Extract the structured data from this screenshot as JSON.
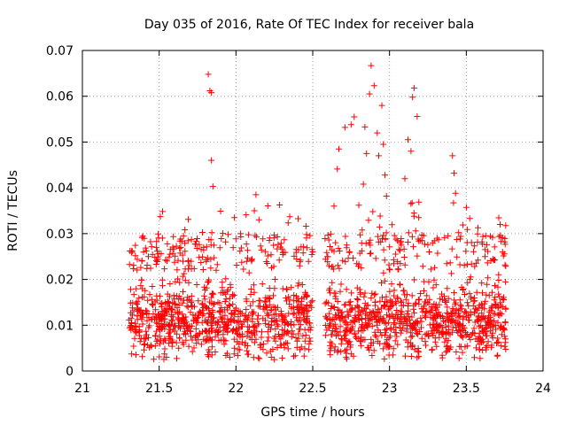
{
  "chart_data": {
    "type": "scatter",
    "title": "Day 035 of 2016, Rate Of TEC Index for receiver bala",
    "xlabel": "GPS time / hours",
    "ylabel": "ROTI / TECUs",
    "xlim": [
      21,
      24
    ],
    "ylim": [
      0,
      0.07
    ],
    "x_ticks": [
      "21",
      "21.5",
      "22",
      "22.5",
      "23",
      "23.5",
      "24"
    ],
    "y_ticks": [
      "0",
      "0.01",
      "0.02",
      "0.03",
      "0.04",
      "0.05",
      "0.06",
      "0.07"
    ],
    "grid": true,
    "marker": "plus",
    "color": "#ff0000",
    "clusters": [
      {
        "x_range": [
          21.3,
          22.5
        ],
        "dense_y": [
          0.004,
          0.022
        ],
        "n": 950
      },
      {
        "x_range": [
          22.58,
          23.76
        ],
        "dense_y": [
          0.004,
          0.022
        ],
        "n": 950
      }
    ],
    "notable_points": [
      {
        "x": 21.82,
        "y": 0.0648
      },
      {
        "x": 21.83,
        "y": 0.0612
      },
      {
        "x": 21.84,
        "y": 0.0608
      },
      {
        "x": 21.84,
        "y": 0.046
      },
      {
        "x": 21.85,
        "y": 0.0403
      },
      {
        "x": 22.13,
        "y": 0.0385
      },
      {
        "x": 22.12,
        "y": 0.035
      },
      {
        "x": 22.15,
        "y": 0.033
      },
      {
        "x": 22.35,
        "y": 0.0337
      },
      {
        "x": 21.99,
        "y": 0.0335
      },
      {
        "x": 22.88,
        "y": 0.0667
      },
      {
        "x": 22.9,
        "y": 0.0623
      },
      {
        "x": 22.87,
        "y": 0.0605
      },
      {
        "x": 22.95,
        "y": 0.058
      },
      {
        "x": 22.92,
        "y": 0.052
      },
      {
        "x": 22.96,
        "y": 0.0495
      },
      {
        "x": 22.93,
        "y": 0.047
      },
      {
        "x": 23.16,
        "y": 0.0618
      },
      {
        "x": 23.15,
        "y": 0.0598
      },
      {
        "x": 23.18,
        "y": 0.0556
      },
      {
        "x": 23.12,
        "y": 0.0505
      },
      {
        "x": 23.14,
        "y": 0.048
      },
      {
        "x": 23.1,
        "y": 0.042
      },
      {
        "x": 22.97,
        "y": 0.0428
      },
      {
        "x": 22.84,
        "y": 0.0533
      },
      {
        "x": 22.85,
        "y": 0.0475
      },
      {
        "x": 22.77,
        "y": 0.0555
      },
      {
        "x": 22.75,
        "y": 0.0538
      },
      {
        "x": 22.71,
        "y": 0.0532
      },
      {
        "x": 22.67,
        "y": 0.0485
      },
      {
        "x": 22.66,
        "y": 0.0441
      },
      {
        "x": 22.83,
        "y": 0.0408
      },
      {
        "x": 22.98,
        "y": 0.0382
      },
      {
        "x": 22.8,
        "y": 0.0362
      },
      {
        "x": 23.41,
        "y": 0.047
      },
      {
        "x": 23.42,
        "y": 0.0432
      },
      {
        "x": 23.43,
        "y": 0.0388
      },
      {
        "x": 23.45,
        "y": 0.0302
      },
      {
        "x": 23.72,
        "y": 0.032
      },
      {
        "x": 23.75,
        "y": 0.0282
      },
      {
        "x": 23.16,
        "y": 0.0338
      },
      {
        "x": 23.19,
        "y": 0.0335
      },
      {
        "x": 23.2,
        "y": 0.0285
      },
      {
        "x": 22.46,
        "y": 0.0298
      },
      {
        "x": 22.5,
        "y": 0.026
      },
      {
        "x": 22.27,
        "y": 0.0293
      },
      {
        "x": 21.31,
        "y": 0.0262
      },
      {
        "x": 21.32,
        "y": 0.0259
      },
      {
        "x": 21.43,
        "y": 0.025
      },
      {
        "x": 21.79,
        "y": 0.027
      },
      {
        "x": 21.76,
        "y": 0.0248
      },
      {
        "x": 22.23,
        "y": 0.003
      },
      {
        "x": 22.25,
        "y": 0.0025
      },
      {
        "x": 21.96,
        "y": 0.003
      }
    ]
  }
}
